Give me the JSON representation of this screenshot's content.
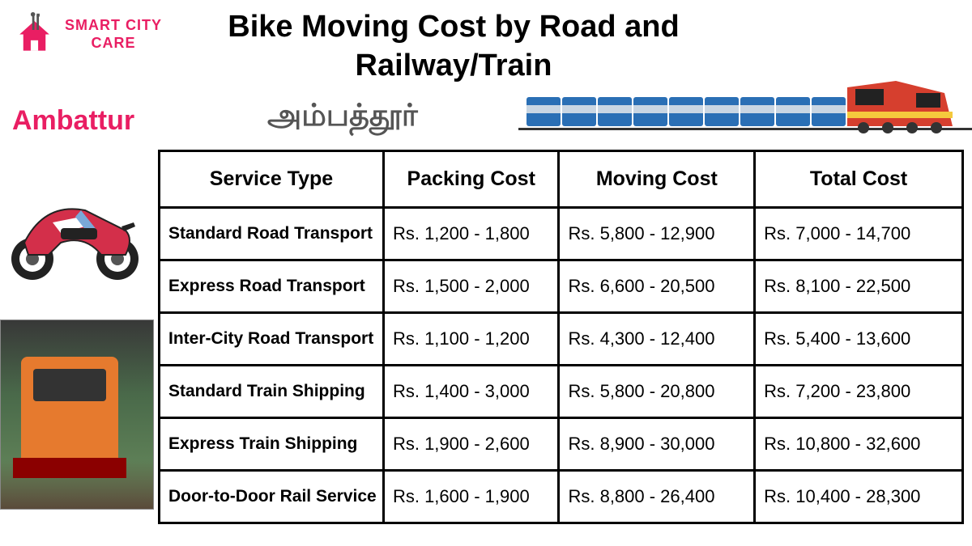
{
  "logo": {
    "brand_line1": "SMART CITY",
    "brand_line2": "CARE",
    "brand_color": "#e91e63",
    "house_color": "#e91e63",
    "tool_color": "#555555"
  },
  "title": "Bike Moving Cost by Road and Railway/Train",
  "city": {
    "english": "Ambattur",
    "tamil": "அம்பத்தூர்",
    "english_color": "#e91e63",
    "tamil_color": "#555555"
  },
  "train_illustration": {
    "locomotive_color": "#d63f2e",
    "locomotive_stripe": "#f5c93d",
    "coach_color": "#2a6fb5",
    "coach_stripe": "#c9d6e3",
    "coach_count": 9
  },
  "bike_icon": {
    "body_color": "#d32f4a",
    "accent_color": "#ffffff",
    "wheel_color": "#222222"
  },
  "table": {
    "border_color": "#000000",
    "header_fontsize": 25,
    "cell_fontsize": 22,
    "columns": [
      "Service Type",
      "Packing Cost",
      "Moving Cost",
      "Total Cost"
    ],
    "rows": [
      {
        "service": "Standard Road Transport",
        "packing": "Rs. 1,200 - 1,800",
        "moving": "Rs. 5,800 - 12,900",
        "total": "Rs. 7,000 - 14,700"
      },
      {
        "service": "Express Road Transport",
        "packing": "Rs. 1,500 - 2,000",
        "moving": "Rs. 6,600 - 20,500",
        "total": "Rs. 8,100 - 22,500"
      },
      {
        "service": "Inter-City Road Transport",
        "packing": "Rs. 1,100 - 1,200",
        "moving": "Rs. 4,300 - 12,400",
        "total": "Rs. 5,400 - 13,600"
      },
      {
        "service": "Standard Train Shipping",
        "packing": "Rs. 1,400 - 3,000",
        "moving": "Rs. 5,800 - 20,800",
        "total": "Rs. 7,200 - 23,800"
      },
      {
        "service": "Express Train Shipping",
        "packing": "Rs. 1,900 - 2,600",
        "moving": "Rs. 8,900 - 30,000",
        "total": "Rs. 10,800 - 32,600"
      },
      {
        "service": "Door-to-Door Rail Service",
        "packing": "Rs. 1,600 - 1,900",
        "moving": "Rs. 8,800 - 26,400",
        "total": "Rs. 10,400 - 28,300"
      }
    ]
  }
}
